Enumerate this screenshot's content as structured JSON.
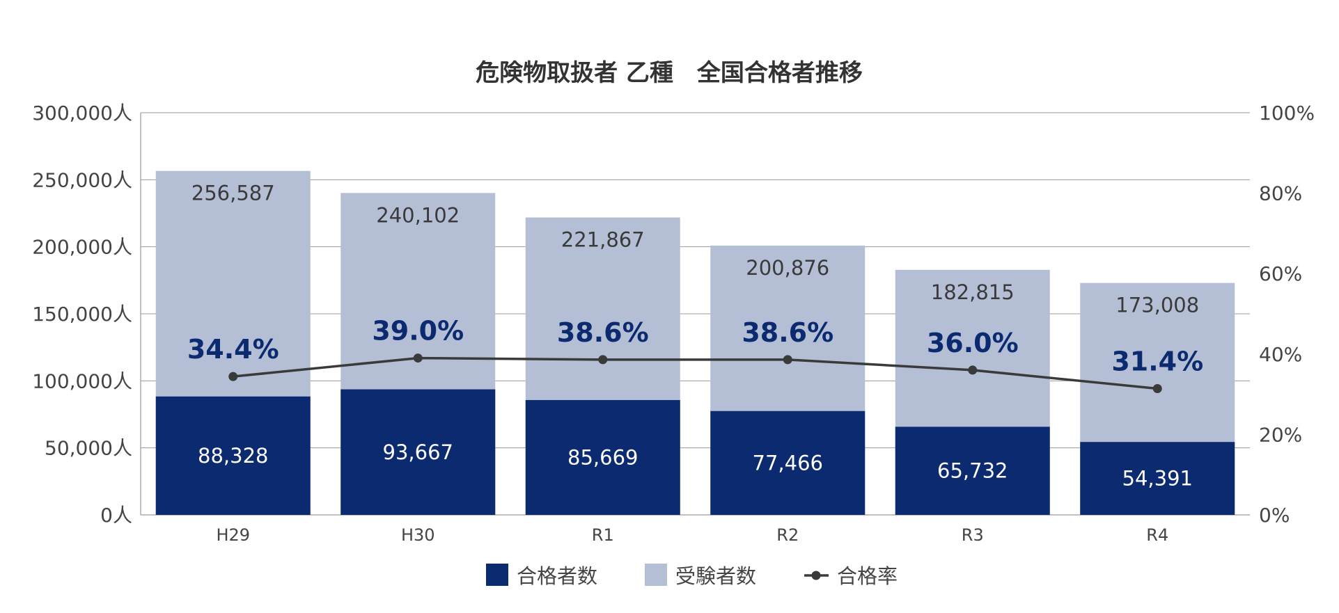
{
  "chart_data": {
    "type": "bar",
    "title": "危険物取扱者 乙種　全国合格者推移",
    "categories": [
      "H29",
      "H30",
      "R1",
      "R2",
      "R3",
      "R4"
    ],
    "series": [
      {
        "name": "合格者数",
        "type": "bar",
        "stacked": true,
        "color": "#0b2a6f",
        "values": [
          88328,
          93667,
          85669,
          77466,
          65732,
          54391
        ],
        "labels": [
          "88,328",
          "93,667",
          "85,669",
          "77,466",
          "65,732",
          "54,391"
        ]
      },
      {
        "name": "受験者数",
        "type": "bar",
        "color": "#b4bfd6",
        "values": [
          256587,
          240102,
          221867,
          200876,
          182815,
          173008
        ],
        "labels": [
          "256,587",
          "240,102",
          "221,867",
          "200,876",
          "182,815",
          "173,008"
        ]
      },
      {
        "name": "合格率",
        "type": "line",
        "axis": "right",
        "color": "#3a3a3a",
        "values": [
          34.4,
          39.0,
          38.6,
          38.6,
          36.0,
          31.4
        ],
        "labels": [
          "34.4%",
          "39.0%",
          "38.6%",
          "38.6%",
          "36.0%",
          "31.4%"
        ]
      }
    ],
    "y_left": {
      "lim": [
        0,
        300000
      ],
      "ticks": [
        "0人",
        "50,000人",
        "100,000人",
        "150,000人",
        "200,000人",
        "250,000人",
        "300,000人"
      ]
    },
    "y_right": {
      "lim": [
        0,
        100
      ],
      "ticks": [
        "0%",
        "20%",
        "40%",
        "60%",
        "80%",
        "100%"
      ]
    },
    "grid": true,
    "legend": {
      "position": "bottom",
      "items": [
        "合格者数",
        "受験者数",
        "合格率"
      ]
    },
    "rate_label_color": "#0b2a6f"
  }
}
